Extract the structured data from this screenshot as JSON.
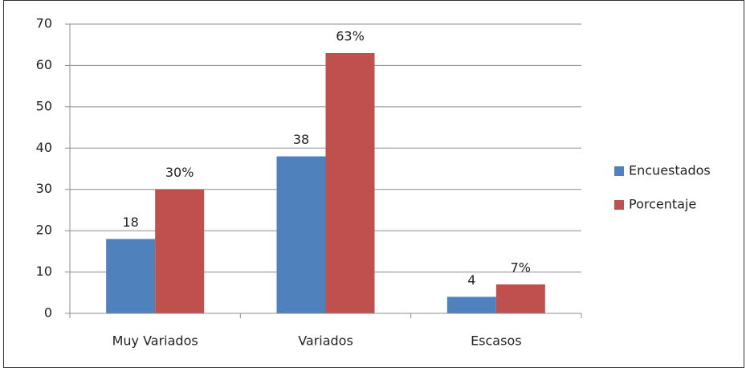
{
  "chart_data": {
    "type": "bar",
    "categories": [
      "Muy Variados",
      "Variados",
      "Escasos"
    ],
    "series": [
      {
        "name": "Encuestados",
        "color": "#4f81bd",
        "values": [
          18,
          38,
          4
        ]
      },
      {
        "name": "Porcentaje",
        "color": "#c0504d",
        "values": [
          30,
          63,
          7
        ],
        "value_labels": [
          "30%",
          "63%",
          "7%"
        ]
      }
    ],
    "ylim": [
      0,
      70
    ],
    "yticks": [
      0,
      10,
      20,
      30,
      40,
      50,
      60,
      70
    ],
    "grid": true,
    "legend": "right"
  }
}
